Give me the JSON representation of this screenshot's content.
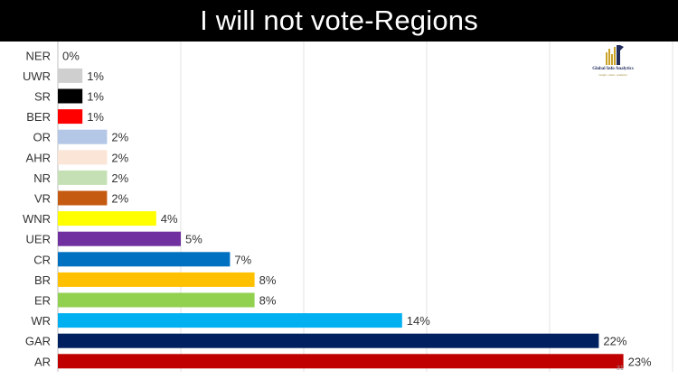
{
  "title": "I will not vote-Regions",
  "logo": {
    "brand": "Global Info Analytics",
    "tagline": "insight • data • analytics"
  },
  "chart_data": {
    "type": "bar",
    "orientation": "horizontal",
    "title": "I will not vote-Regions",
    "xlabel": "",
    "ylabel": "",
    "xlim": [
      0,
      25
    ],
    "grid": true,
    "legend": "none",
    "value_suffix": "%",
    "categories": [
      "NER",
      "UWR",
      "SR",
      "BER",
      "OR",
      "AHR",
      "NR",
      "VR",
      "WNR",
      "UER",
      "CR",
      "BR",
      "ER",
      "WR",
      "GAR",
      "AR"
    ],
    "values": [
      0,
      1,
      1,
      1,
      2,
      2,
      2,
      2,
      4,
      5,
      7,
      8,
      8,
      14,
      22,
      23
    ],
    "colors": [
      "#9e9e9e",
      "#cfcfcf",
      "#000000",
      "#ff0000",
      "#b4c7e7",
      "#fbe5d6",
      "#c5e0b4",
      "#c55a11",
      "#ffff00",
      "#7030a0",
      "#0070c0",
      "#ffc000",
      "#92d050",
      "#00b0f0",
      "#002060",
      "#c00000"
    ]
  },
  "footnote": "31"
}
